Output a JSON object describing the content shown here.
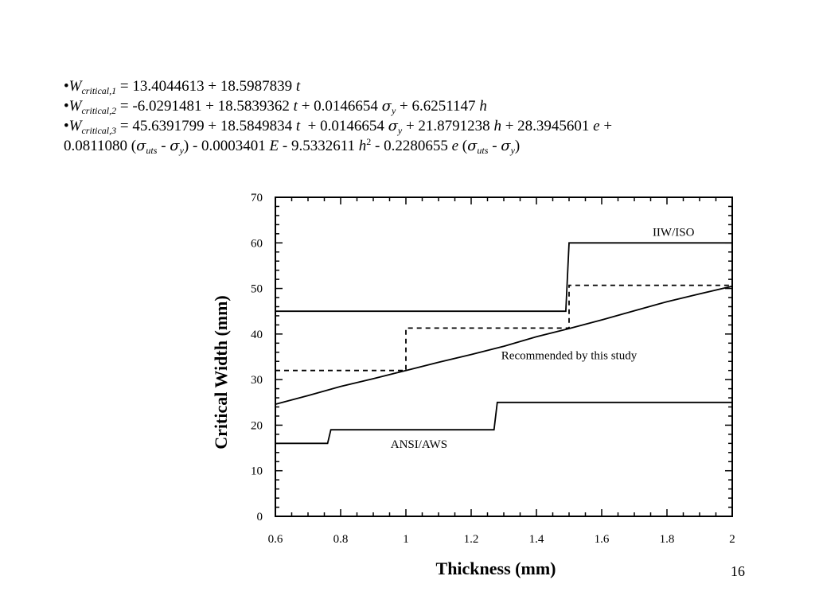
{
  "slide": {
    "page_number": "16",
    "bullet": "•",
    "formulas": {
      "f1": {
        "var": "W",
        "sub": "critical,1",
        "rest": " = 13.4044613 + 18.5987839 ",
        "t": "t"
      },
      "f2": {
        "var": "W",
        "sub": "critical,2",
        "p1": " = -6.0291481 + 18.5839362 ",
        "t": "t",
        "p2": " + 0.0146654 ",
        "sigma": "σ",
        "y": "y",
        "p3": " + 6.6251147 ",
        "h": "h"
      },
      "f3": {
        "var": "W",
        "sub": "critical,3",
        "p1": " = 45.6391799 + 18.5849834 ",
        "t": "t",
        "p2": "  + 0.0146654 ",
        "sigma": "σ",
        "y": "y",
        "p3": " + 21.8791238 ",
        "h": "h",
        "p4": " + 28.3945601 ",
        "e": "e",
        "p5": " +",
        "l2_a": "0.0811080 (",
        "uts": "uts",
        "dash": " - ",
        "l2_b": ") - 0.0003401 ",
        "E": "E",
        "l2_c": " - 9.5332611 ",
        "sq": "2",
        "l2_d": " - 0.2280655 ",
        "l2_e": " (",
        "close": ")"
      }
    }
  },
  "chart_data": {
    "type": "line",
    "xlabel": "Thickness (mm)",
    "ylabel": "Critical Width (mm)",
    "xlim": [
      0.6,
      2.0
    ],
    "ylim": [
      0,
      70
    ],
    "xticks": [
      0.6,
      0.8,
      1.0,
      1.2,
      1.4,
      1.6,
      1.8,
      2.0
    ],
    "xtick_labels": [
      "0.6",
      "0.8",
      "1",
      "1.2",
      "1.4",
      "1.6",
      "1.8",
      "2"
    ],
    "yticks": [
      0,
      10,
      20,
      30,
      40,
      50,
      60,
      70
    ],
    "ytick_labels": [
      "0",
      "10",
      "20",
      "30",
      "40",
      "50",
      "60",
      "70"
    ],
    "grid": false,
    "series": [
      {
        "name": "IIW/ISO",
        "style": "solid",
        "color": "#000000",
        "x": [
          0.6,
          1.49,
          1.5,
          2.0
        ],
        "y": [
          45,
          45,
          60,
          60
        ]
      },
      {
        "name": "ANSI/AWS",
        "style": "solid",
        "color": "#000000",
        "x": [
          0.6,
          0.76,
          0.77,
          1.27,
          1.28,
          2.0
        ],
        "y": [
          16,
          16,
          19,
          19,
          25,
          25
        ]
      },
      {
        "name": "Recommended by this study",
        "style": "solid",
        "color": "#000000",
        "x": [
          0.6,
          0.7,
          0.8,
          0.9,
          1.0,
          1.1,
          1.2,
          1.3,
          1.4,
          1.5,
          1.6,
          1.7,
          1.8,
          1.9,
          2.0
        ],
        "y": [
          24.6,
          26.5,
          28.5,
          30.2,
          32.0,
          33.8,
          35.5,
          37.3,
          39.4,
          41.2,
          43.1,
          45.1,
          47.1,
          48.8,
          50.5
        ]
      },
      {
        "name": "",
        "style": "dashed",
        "color": "#000000",
        "x": [
          0.6,
          1.0,
          1.0,
          1.5,
          1.5,
          2.0
        ],
        "y": [
          32,
          32,
          41.3,
          41.3,
          50.7,
          50.7
        ]
      }
    ],
    "annotations": [
      {
        "text": "IIW/ISO",
        "x": 1.82,
        "y": 61.5
      },
      {
        "text": "Recommended by this study",
        "x": 1.5,
        "y": 34.5
      },
      {
        "text": "ANSI/AWS",
        "x": 1.04,
        "y": 15
      }
    ]
  }
}
